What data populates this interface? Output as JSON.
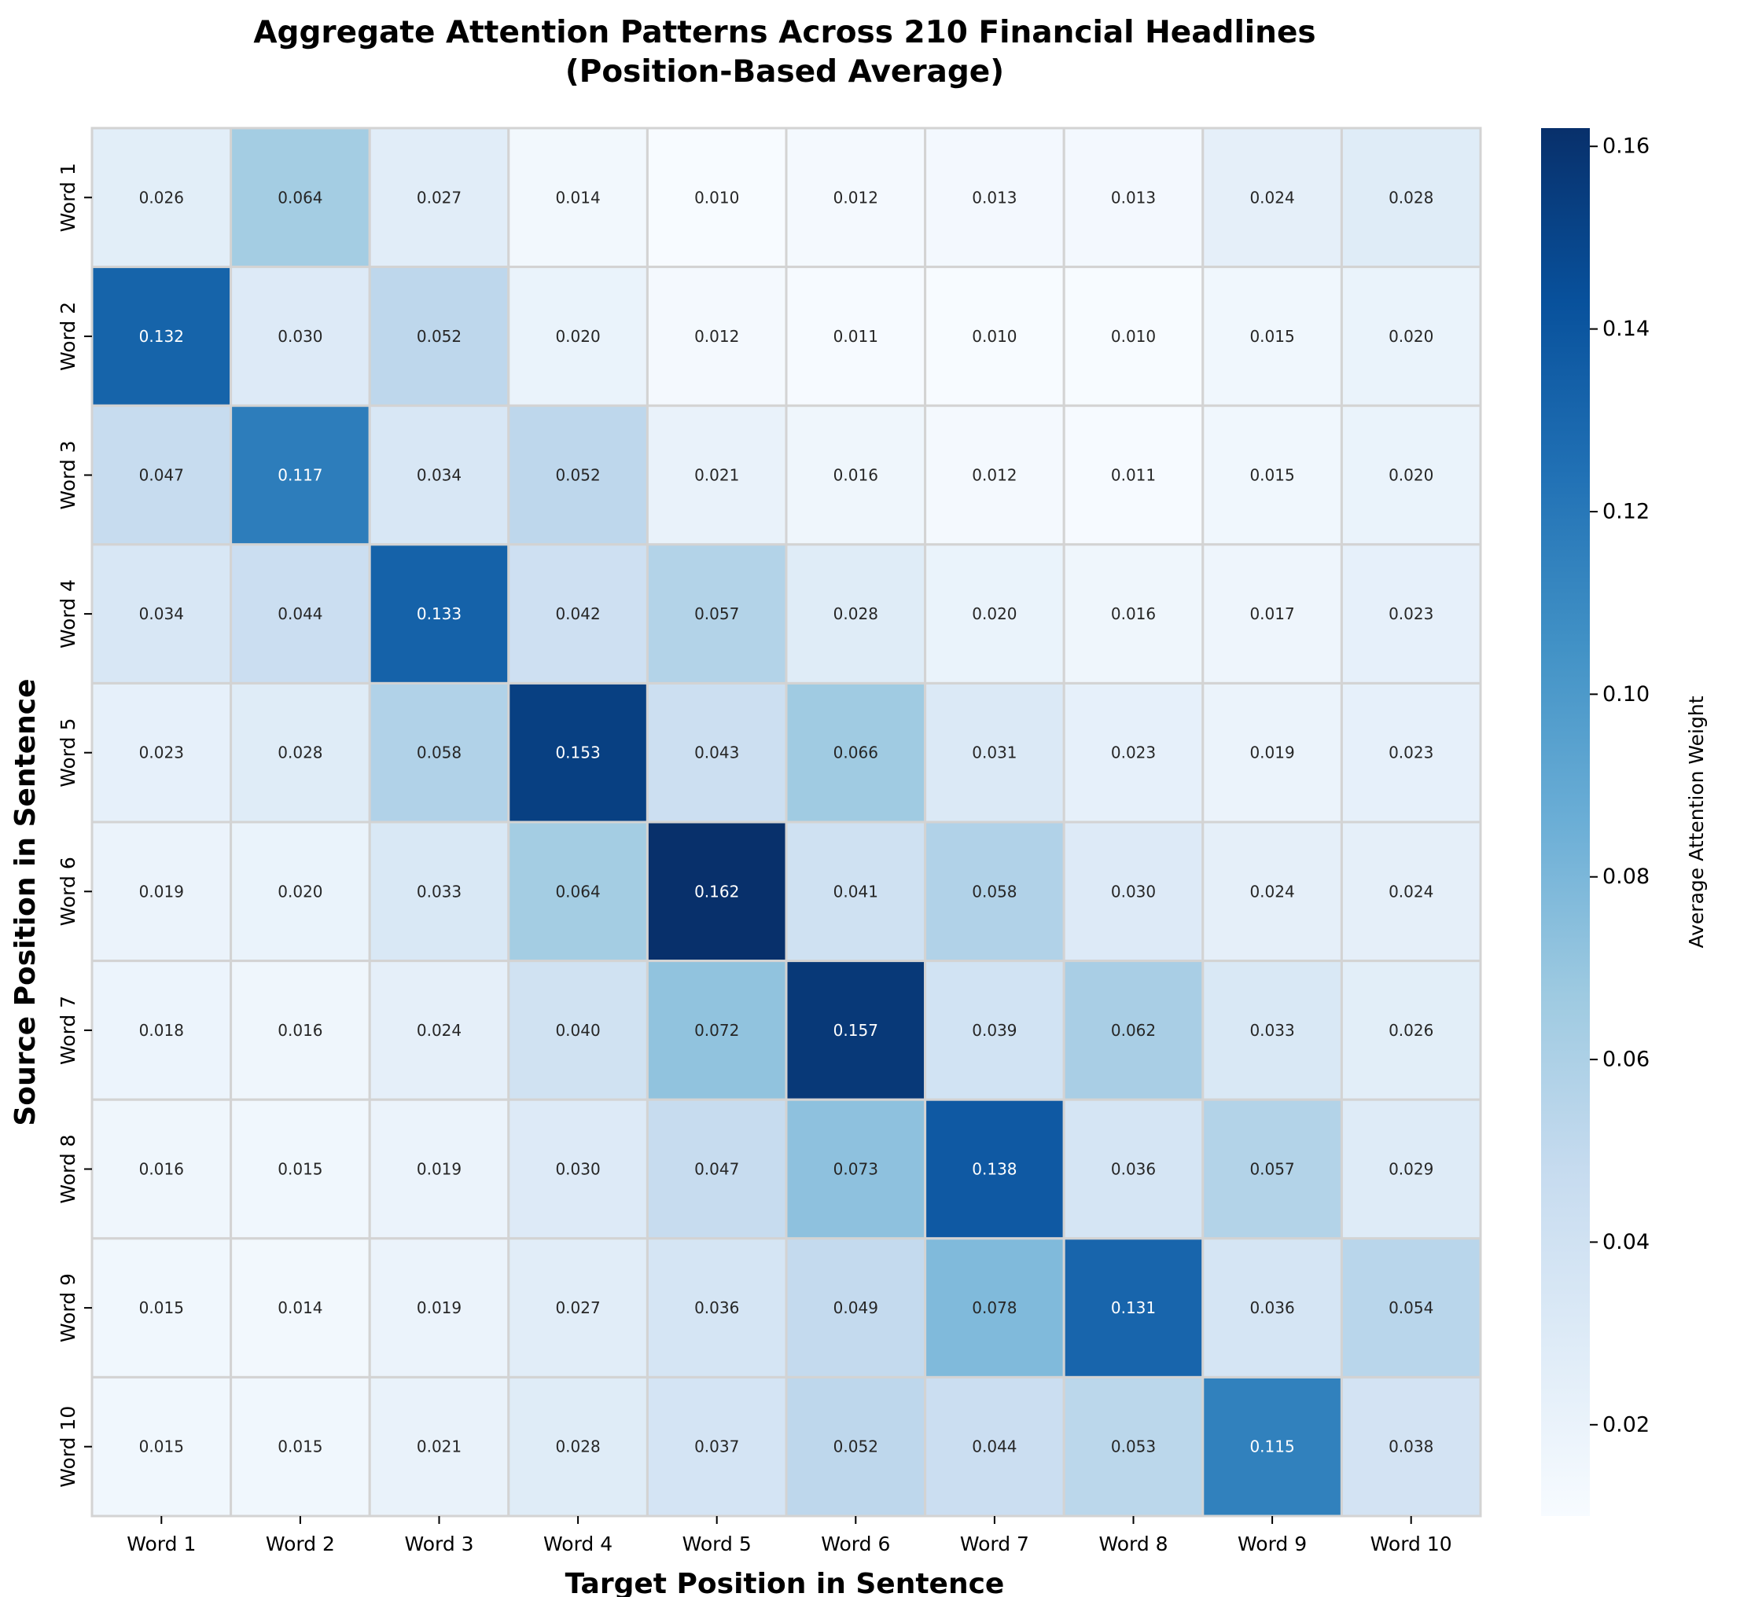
{
  "chart_data": {
    "type": "heatmap",
    "title_lines": [
      "Aggregate Attention Patterns Across 210 Financial Headlines",
      "(Position-Based Average)"
    ],
    "xlabel": "Target Position in Sentence",
    "ylabel": "Source Position in Sentence",
    "x_categories": [
      "Word 1",
      "Word 2",
      "Word 3",
      "Word 4",
      "Word 5",
      "Word 6",
      "Word 7",
      "Word 8",
      "Word 9",
      "Word 10"
    ],
    "y_categories": [
      "Word 1",
      "Word 2",
      "Word 3",
      "Word 4",
      "Word 5",
      "Word 6",
      "Word 7",
      "Word 8",
      "Word 9",
      "Word 10"
    ],
    "values": [
      [
        0.026,
        0.064,
        0.027,
        0.014,
        0.01,
        0.012,
        0.013,
        0.013,
        0.024,
        0.028
      ],
      [
        0.132,
        0.03,
        0.052,
        0.02,
        0.012,
        0.011,
        0.01,
        0.01,
        0.015,
        0.02
      ],
      [
        0.047,
        0.117,
        0.034,
        0.052,
        0.021,
        0.016,
        0.012,
        0.011,
        0.015,
        0.02
      ],
      [
        0.034,
        0.044,
        0.133,
        0.042,
        0.057,
        0.028,
        0.02,
        0.016,
        0.017,
        0.023
      ],
      [
        0.023,
        0.028,
        0.058,
        0.153,
        0.043,
        0.066,
        0.031,
        0.023,
        0.019,
        0.023
      ],
      [
        0.019,
        0.02,
        0.033,
        0.064,
        0.162,
        0.041,
        0.058,
        0.03,
        0.024,
        0.024
      ],
      [
        0.018,
        0.016,
        0.024,
        0.04,
        0.072,
        0.157,
        0.039,
        0.062,
        0.033,
        0.026
      ],
      [
        0.016,
        0.015,
        0.019,
        0.03,
        0.047,
        0.073,
        0.138,
        0.036,
        0.057,
        0.029
      ],
      [
        0.015,
        0.014,
        0.019,
        0.027,
        0.036,
        0.049,
        0.078,
        0.131,
        0.036,
        0.054
      ],
      [
        0.015,
        0.015,
        0.021,
        0.028,
        0.037,
        0.052,
        0.044,
        0.053,
        0.115,
        0.038
      ]
    ],
    "colorbar": {
      "label": "Average Attention Weight",
      "vmin": 0.01,
      "vmax": 0.162,
      "ticks": [
        0.02,
        0.04,
        0.06,
        0.08,
        0.1,
        0.12,
        0.14,
        0.16
      ],
      "tick_labels": [
        "0.02",
        "0.04",
        "0.06",
        "0.08",
        "0.10",
        "0.12",
        "0.14",
        "0.16"
      ],
      "colormap": "Blues"
    },
    "cell_border_color": "#d3d3d3",
    "grid": false
  }
}
